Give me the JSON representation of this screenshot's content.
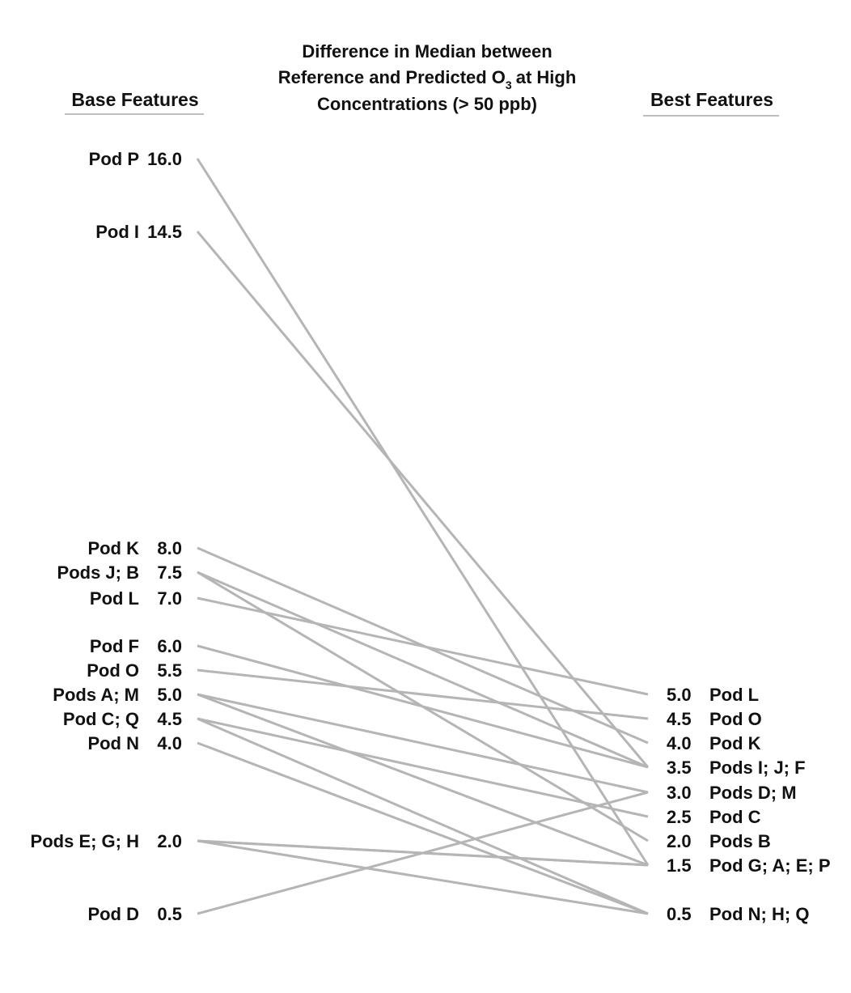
{
  "chart_data": {
    "type": "slope",
    "title_lines": [
      "Difference in Median between",
      "Reference and Predicted O",
      "Concentrations (> 50 ppb)"
    ],
    "title_line2_subscript": "3",
    "title_line2_suffix": "at High",
    "left_header": "Base Features",
    "right_header": "Best Features",
    "left_points": [
      {
        "label": "Pod P",
        "value_text": "16.0",
        "value": 16.0
      },
      {
        "label": "Pod I",
        "value_text": "14.5",
        "value": 14.5
      },
      {
        "label": "Pod K",
        "value_text": "8.0",
        "value": 8.0
      },
      {
        "label": "Pods J; B",
        "value_text": "7.5",
        "value": 7.5
      },
      {
        "label": "Pod L",
        "value_text": "7.0",
        "value": 7.0
      },
      {
        "label": "Pod F",
        "value_text": "6.0",
        "value": 6.0
      },
      {
        "label": "Pod O",
        "value_text": "5.5",
        "value": 5.5
      },
      {
        "label": "Pods A; M",
        "value_text": "5.0",
        "value": 5.0
      },
      {
        "label": "Pod C; Q",
        "value_text": "4.5",
        "value": 4.5
      },
      {
        "label": "Pod N",
        "value_text": "4.0",
        "value": 4.0
      },
      {
        "label": "Pods E; G; H",
        "value_text": "2.0",
        "value": 2.0
      },
      {
        "label": "Pod D",
        "value_text": "0.5",
        "value": 0.5
      }
    ],
    "right_points": [
      {
        "label": "Pod L",
        "value_text": "5.0",
        "value": 5.0
      },
      {
        "label": "Pod O",
        "value_text": "4.5",
        "value": 4.5
      },
      {
        "label": "Pod K",
        "value_text": "4.0",
        "value": 4.0
      },
      {
        "label": "Pods I; J; F",
        "value_text": "3.5",
        "value": 3.5
      },
      {
        "label": "Pods D; M",
        "value_text": "3.0",
        "value": 3.0
      },
      {
        "label": "Pod C",
        "value_text": "2.5",
        "value": 2.5
      },
      {
        "label": "Pods B",
        "value_text": "2.0",
        "value": 2.0
      },
      {
        "label": "Pod G; A; E; P",
        "value_text": "1.5",
        "value": 1.5
      },
      {
        "label": "Pod N; H; Q",
        "value_text": "0.5",
        "value": 0.5
      }
    ],
    "links": [
      {
        "pod": "P",
        "base": 16.0,
        "best": 1.5
      },
      {
        "pod": "I",
        "base": 14.5,
        "best": 3.5
      },
      {
        "pod": "K",
        "base": 8.0,
        "best": 4.0
      },
      {
        "pod": "J",
        "base": 7.5,
        "best": 3.5
      },
      {
        "pod": "B",
        "base": 7.5,
        "best": 2.0
      },
      {
        "pod": "L",
        "base": 7.0,
        "best": 5.0
      },
      {
        "pod": "F",
        "base": 6.0,
        "best": 3.5
      },
      {
        "pod": "O",
        "base": 5.5,
        "best": 4.5
      },
      {
        "pod": "A",
        "base": 5.0,
        "best": 1.5
      },
      {
        "pod": "M",
        "base": 5.0,
        "best": 3.0
      },
      {
        "pod": "C",
        "base": 4.5,
        "best": 2.5
      },
      {
        "pod": "Q",
        "base": 4.5,
        "best": 0.5
      },
      {
        "pod": "N",
        "base": 4.0,
        "best": 0.5
      },
      {
        "pod": "E",
        "base": 2.0,
        "best": 1.5
      },
      {
        "pod": "G",
        "base": 2.0,
        "best": 1.5
      },
      {
        "pod": "H",
        "base": 2.0,
        "best": 0.5
      },
      {
        "pod": "D",
        "base": 0.5,
        "best": 3.0
      }
    ]
  }
}
